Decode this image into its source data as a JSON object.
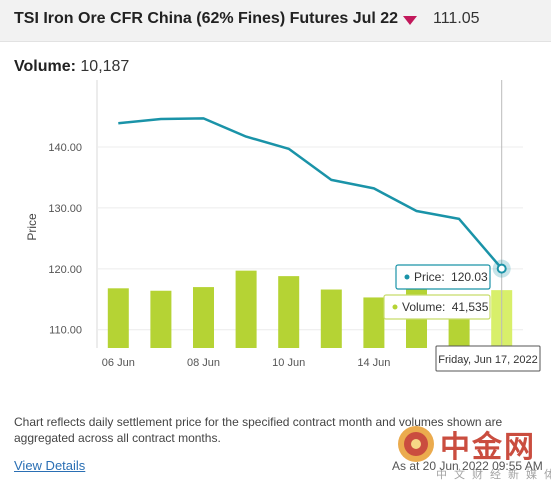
{
  "header": {
    "title": "TSI Iron Ore CFR China (62% Fines) Futures Jul 22",
    "direction_icon": "triangle-down-icon",
    "last_price": "111.05",
    "down_color": "#c2185b"
  },
  "volume_summary": {
    "label": "Volume:",
    "value": "10,187"
  },
  "chart_data": {
    "type": "bar+line",
    "ylabel": "Price",
    "ylim": [
      107,
      151
    ],
    "y_ticks": [
      "110.00",
      "120.00",
      "130.00",
      "140.00"
    ],
    "x_tick_labels": [
      "06 Jun",
      "08 Jun",
      "10 Jun",
      "14 Jun"
    ],
    "dates": [
      "2022-06-06",
      "2022-06-07",
      "2022-06-08",
      "2022-06-09",
      "2022-06-10",
      "2022-06-13",
      "2022-06-14",
      "2022-06-15",
      "2022-06-16",
      "2022-06-17"
    ],
    "price": [
      143.9,
      144.6,
      144.7,
      141.7,
      139.7,
      134.6,
      133.2,
      129.5,
      128.2,
      120.03
    ],
    "volume_bar_top_price": [
      116.8,
      116.4,
      117.0,
      119.7,
      118.8,
      116.6,
      115.3,
      117.7,
      115.7,
      116.5
    ],
    "line_color": "#1a93a8",
    "bar_color": "#b5d334",
    "bar_highlight_color": "#d8ef6a",
    "tooltip": {
      "price_label": "Price:",
      "price_value": "120.03",
      "volume_label": "Volume:",
      "volume_value": "41,535",
      "date": "Friday, Jun 17, 2022"
    }
  },
  "footer": {
    "note": "Chart reflects daily settlement price for the specified contract month and volumes shown are aggregated across all contract months.",
    "link": "View Details",
    "as_of": "As at 20 Jun 2022 09:55 AM"
  },
  "watermark": {
    "main": "中金网",
    "sub": "中文财经新媒体",
    "logo": "coin-logo-icon"
  }
}
